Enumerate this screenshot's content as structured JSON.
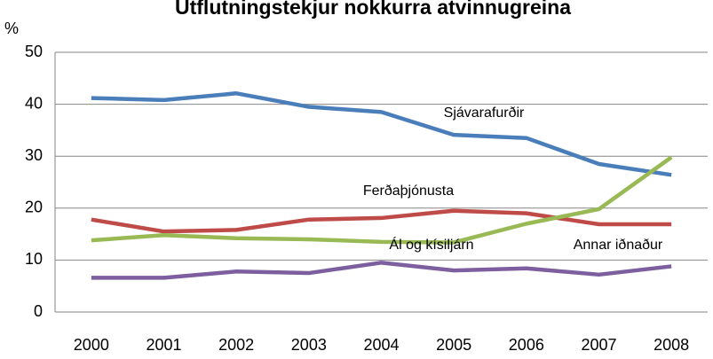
{
  "chart_data": {
    "type": "line",
    "title": "Útflutningstekjur nokkurra atvinnugreina",
    "y_label": "%",
    "categories": [
      "2000",
      "2001",
      "2002",
      "2003",
      "2004",
      "2005",
      "2006",
      "2007",
      "2008"
    ],
    "series": [
      {
        "name": "Sjávarafurðir",
        "color": "#4a7ebb",
        "values": [
          41.2,
          40.8,
          42.1,
          39.5,
          38.5,
          34.1,
          33.5,
          28.5,
          26.4
        ]
      },
      {
        "name": "Ferðaþjónusta",
        "color": "#be4b48",
        "values": [
          17.8,
          15.5,
          15.8,
          17.8,
          18.1,
          19.5,
          19.0,
          16.9,
          16.9
        ]
      },
      {
        "name": "Ál og kísiljárn",
        "color": "#98b954",
        "values": [
          13.8,
          14.8,
          14.2,
          14.0,
          13.5,
          13.4,
          17.0,
          19.8,
          29.8
        ]
      },
      {
        "name": "Annar iðnaður",
        "color": "#7d5fa0",
        "values": [
          6.6,
          6.6,
          7.8,
          7.5,
          9.5,
          8.0,
          8.4,
          7.2,
          8.8
        ]
      }
    ],
    "ylim": [
      0,
      50
    ],
    "yticks": [
      0,
      10,
      20,
      30,
      40,
      50
    ],
    "grid": true,
    "legend": "inline"
  }
}
